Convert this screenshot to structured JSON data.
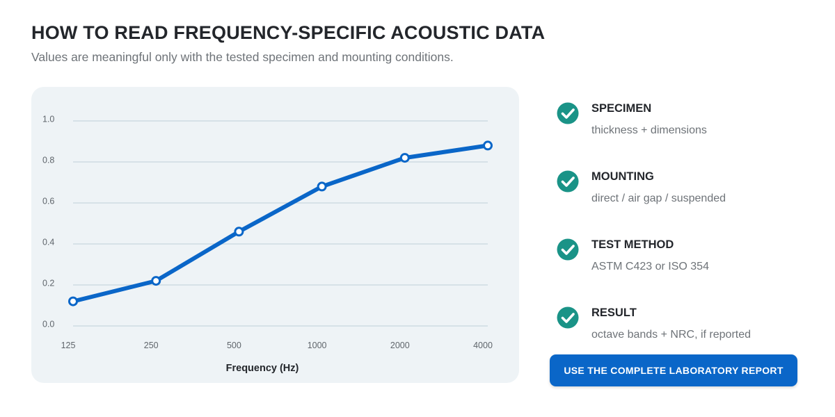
{
  "header": {
    "title": "HOW TO READ FREQUENCY-SPECIFIC ACOUSTIC DATA",
    "subtitle": "Values are meaningful only with the tested specimen and mounting conditions."
  },
  "chart_data": {
    "type": "line",
    "x": [
      "125",
      "250",
      "500",
      "1000",
      "2000",
      "4000"
    ],
    "series": [
      {
        "values": [
          0.12,
          0.22,
          0.46,
          0.68,
          0.82,
          0.88
        ]
      }
    ],
    "xlabel": "Frequency (Hz)",
    "ylabel": "",
    "ylim": [
      0,
      1.0
    ],
    "yticks": [
      "0.0",
      "0.2",
      "0.4",
      "0.6",
      "0.8",
      "1.0"
    ],
    "grid": true,
    "line_color": "#0a66c8",
    "grid_color": "#c8d6de"
  },
  "checklist": [
    {
      "label": "SPECIMEN",
      "desc": "thickness + dimensions"
    },
    {
      "label": "MOUNTING",
      "desc": "direct / air gap / suspended"
    },
    {
      "label": "TEST METHOD",
      "desc": "ASTM C423 or ISO 354"
    },
    {
      "label": "RESULT",
      "desc": "octave bands + NRC, if reported"
    }
  ],
  "cta": {
    "label": "USE THE COMPLETE LABORATORY REPORT"
  },
  "colors": {
    "check": "#1a9387",
    "accent": "#0a66c8"
  }
}
